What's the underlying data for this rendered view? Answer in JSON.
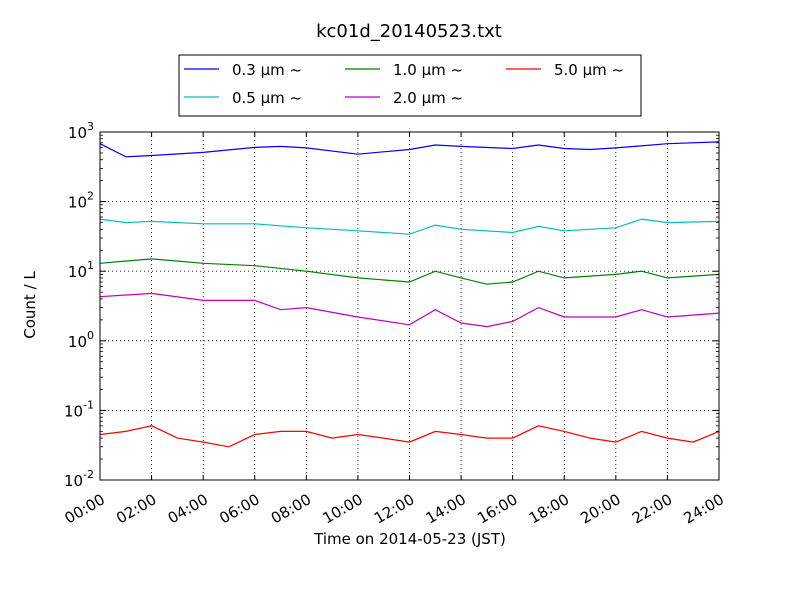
{
  "chart_data": {
    "type": "line",
    "title": "kc01d_20140523.txt",
    "xlabel": "Time on 2014-05-23 (JST)",
    "ylabel": "Count / L",
    "y_scale": "log",
    "ylim": [
      0.01,
      1000
    ],
    "xlim": [
      "00:00",
      "24:00"
    ],
    "x_ticks": [
      "00:00",
      "02:00",
      "04:00",
      "06:00",
      "08:00",
      "10:00",
      "12:00",
      "14:00",
      "16:00",
      "18:00",
      "20:00",
      "22:00",
      "24:00"
    ],
    "y_ticks": [
      {
        "base": "10",
        "exp": "-2"
      },
      {
        "base": "10",
        "exp": "-1"
      },
      {
        "base": "10",
        "exp": "0"
      },
      {
        "base": "10",
        "exp": "1"
      },
      {
        "base": "10",
        "exp": "2"
      },
      {
        "base": "10",
        "exp": "3"
      }
    ],
    "grid": true,
    "legend_position": "top-center, above plot",
    "series": [
      {
        "name": "0.3 μm ~",
        "color": "#0000ff",
        "x": [
          "00:00",
          "01:00",
          "02:00",
          "04:00",
          "06:00",
          "07:00",
          "08:00",
          "10:00",
          "11:00",
          "12:00",
          "13:00",
          "14:00",
          "16:00",
          "17:00",
          "18:00",
          "19:00",
          "20:00",
          "22:00",
          "24:00"
        ],
        "values": [
          680,
          440,
          460,
          510,
          600,
          620,
          590,
          480,
          520,
          560,
          650,
          620,
          580,
          650,
          580,
          560,
          590,
          680,
          720
        ]
      },
      {
        "name": "0.5 μm ~",
        "color": "#00bfbf",
        "x": [
          "00:00",
          "01:00",
          "02:00",
          "04:00",
          "06:00",
          "08:00",
          "10:00",
          "12:00",
          "13:00",
          "14:00",
          "16:00",
          "17:00",
          "18:00",
          "20:00",
          "21:00",
          "22:00",
          "24:00"
        ],
        "values": [
          56,
          50,
          52,
          48,
          48,
          42,
          38,
          34,
          46,
          40,
          36,
          44,
          38,
          42,
          56,
          50,
          52
        ]
      },
      {
        "name": "1.0 μm ~",
        "color": "#008000",
        "x": [
          "00:00",
          "02:00",
          "04:00",
          "06:00",
          "08:00",
          "10:00",
          "12:00",
          "13:00",
          "14:00",
          "15:00",
          "16:00",
          "17:00",
          "18:00",
          "20:00",
          "21:00",
          "22:00",
          "24:00"
        ],
        "values": [
          13,
          15,
          13,
          12,
          10,
          8,
          7,
          10,
          8,
          6.5,
          7,
          10,
          8,
          9,
          10,
          8,
          9
        ]
      },
      {
        "name": "2.0 μm ~",
        "color": "#bf00bf",
        "x": [
          "00:00",
          "02:00",
          "04:00",
          "06:00",
          "07:00",
          "08:00",
          "10:00",
          "12:00",
          "13:00",
          "14:00",
          "15:00",
          "16:00",
          "17:00",
          "18:00",
          "20:00",
          "21:00",
          "22:00",
          "24:00"
        ],
        "values": [
          4.3,
          4.8,
          3.8,
          3.8,
          2.8,
          3,
          2.2,
          1.7,
          2.8,
          1.8,
          1.6,
          1.9,
          3,
          2.2,
          2.2,
          2.8,
          2.2,
          2.5
        ]
      },
      {
        "name": "5.0 μm ~",
        "color": "#ff0000",
        "x": [
          "00:00",
          "01:00",
          "02:00",
          "03:00",
          "04:00",
          "05:00",
          "06:00",
          "07:00",
          "08:00",
          "09:00",
          "10:00",
          "11:00",
          "12:00",
          "13:00",
          "14:00",
          "15:00",
          "16:00",
          "17:00",
          "18:00",
          "19:00",
          "20:00",
          "21:00",
          "22:00",
          "23:00",
          "24:00"
        ],
        "values": [
          0.045,
          0.05,
          0.06,
          0.04,
          0.035,
          0.03,
          0.045,
          0.05,
          0.05,
          0.04,
          0.045,
          0.04,
          0.035,
          0.05,
          0.045,
          0.04,
          0.04,
          0.06,
          0.05,
          0.04,
          0.035,
          0.05,
          0.04,
          0.035,
          0.05
        ]
      }
    ]
  }
}
